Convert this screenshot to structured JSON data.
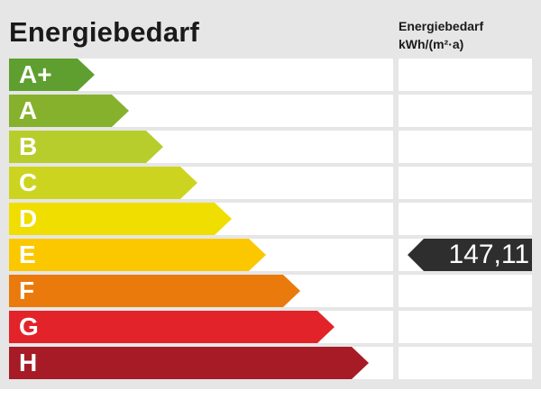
{
  "header": {
    "title": "Energiebedarf",
    "column_label_line1": "Energiebedarf",
    "column_label_line2": "kWh/(m²·a)"
  },
  "classes": [
    {
      "label": "A+",
      "color": "#5f9f2f"
    },
    {
      "label": "A",
      "color": "#86b12d"
    },
    {
      "label": "B",
      "color": "#b7cd2c"
    },
    {
      "label": "C",
      "color": "#cdd41f"
    },
    {
      "label": "D",
      "color": "#f0de00"
    },
    {
      "label": "E",
      "color": "#fbc800"
    },
    {
      "label": "F",
      "color": "#ea7a0c"
    },
    {
      "label": "G",
      "color": "#e3232a"
    },
    {
      "label": "H",
      "color": "#a61b26"
    }
  ],
  "current": {
    "value": "147,11",
    "class_label": "E",
    "marker_color": "#2e2e2e"
  }
}
